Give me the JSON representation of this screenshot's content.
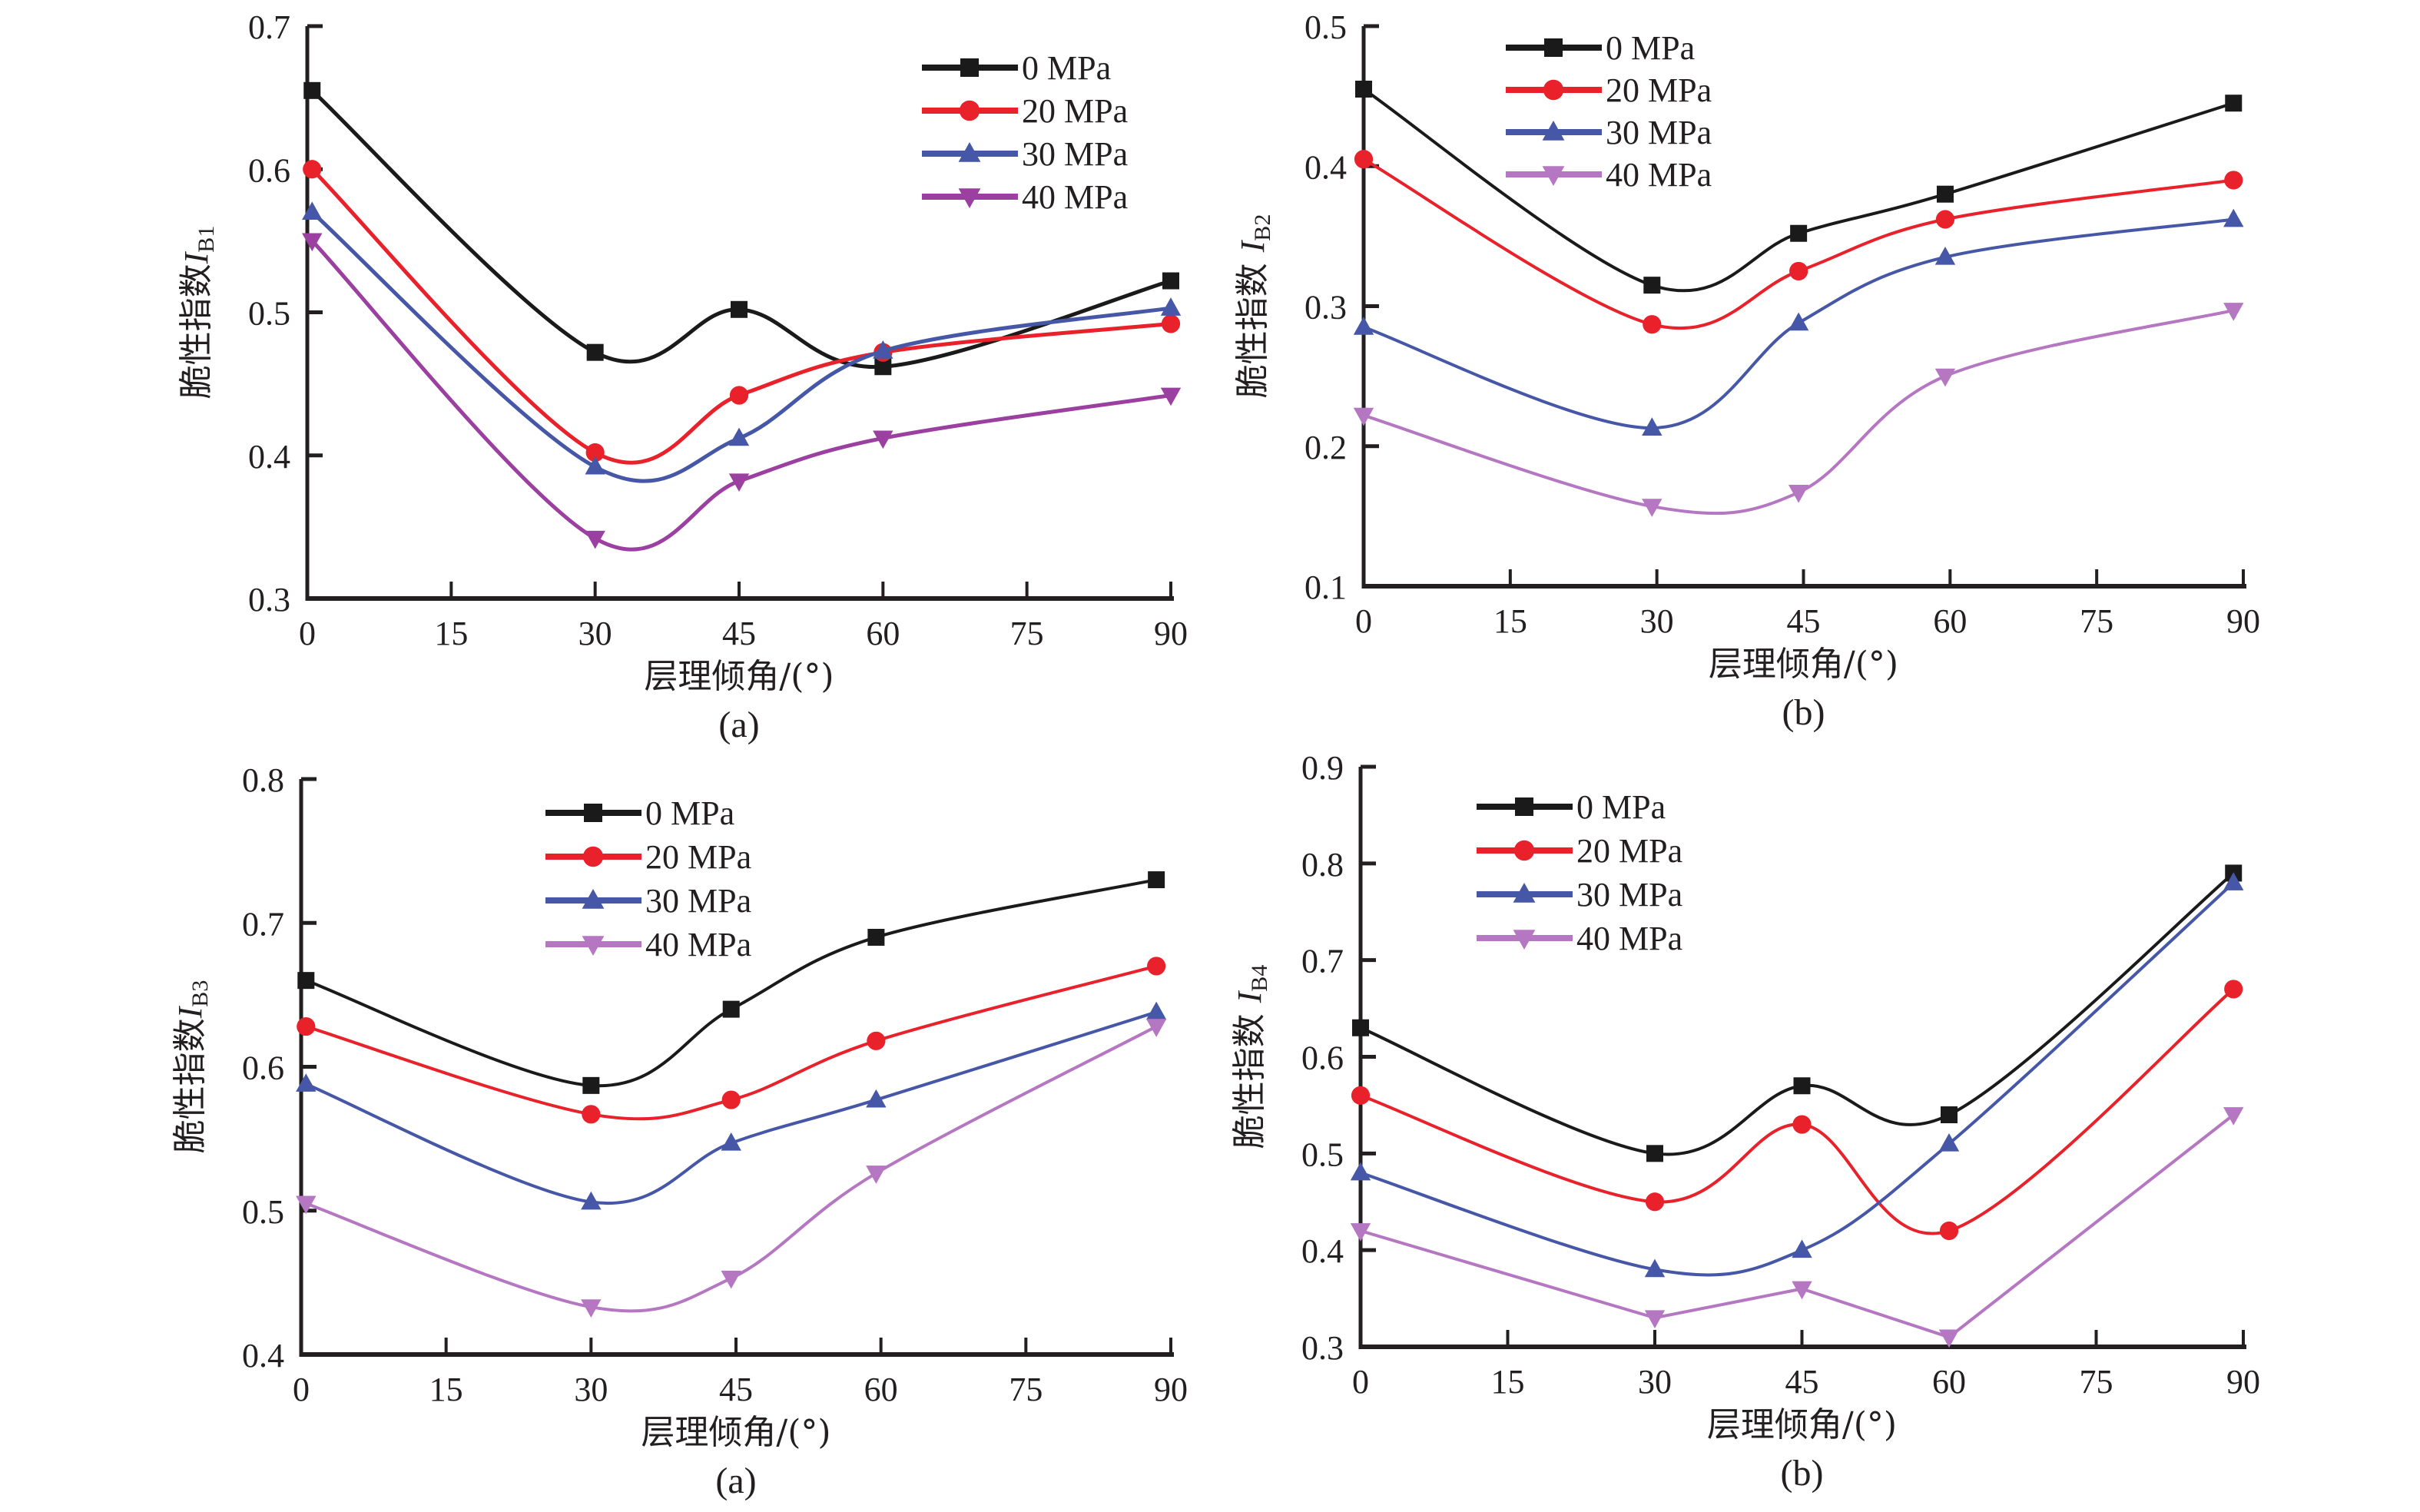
{
  "figure": {
    "series_styles": [
      {
        "name": "0 MPa",
        "color": "#1a1a1a",
        "marker": "square"
      },
      {
        "name": "20 MPa",
        "color": "#e8212b",
        "marker": "circle"
      },
      {
        "name": "30 MPa",
        "color": "#4557a6",
        "marker": "triangle-up"
      },
      {
        "name": "40 MPa",
        "color": "#9b3fa0",
        "marker": "triangle-down"
      }
    ]
  },
  "chart_data": [
    {
      "id": "a-top",
      "type": "line",
      "caption": "(a)",
      "xlabel": "层理倾角/(°)",
      "ylabel_prefix": "脆性指数",
      "ylabel_var": "I",
      "ylabel_sub": "B1",
      "xlim": [
        0,
        90
      ],
      "ylim": [
        0.3,
        0.7
      ],
      "xticks": [
        0,
        15,
        30,
        45,
        60,
        75,
        90
      ],
      "yticks": [
        0.3,
        0.4,
        0.5,
        0.6,
        0.7
      ],
      "ytick_labels": [
        "0.3",
        "0.4",
        "0.5",
        "0.6",
        "0.7"
      ],
      "legend_position": "top-right",
      "smooth": [
        true,
        true,
        true,
        true
      ],
      "series": [
        {
          "name": "0 MPa",
          "x": [
            0.5,
            30,
            45,
            60,
            90
          ],
          "values": [
            0.655,
            0.472,
            0.502,
            0.462,
            0.522
          ]
        },
        {
          "name": "20 MPa",
          "x": [
            0.5,
            30,
            45,
            60,
            90
          ],
          "values": [
            0.6,
            0.402,
            0.442,
            0.472,
            0.492
          ]
        },
        {
          "name": "30 MPa",
          "x": [
            0.5,
            30,
            45,
            60,
            90
          ],
          "values": [
            0.57,
            0.392,
            0.412,
            0.473,
            0.503
          ]
        },
        {
          "name": "40 MPa",
          "x": [
            0.5,
            30,
            45,
            60,
            90
          ],
          "values": [
            0.55,
            0.342,
            0.382,
            0.412,
            0.442
          ]
        }
      ]
    },
    {
      "id": "b-top",
      "type": "line",
      "caption": "(b)",
      "xlabel": "层理倾角/(°)",
      "ylabel_prefix": "脆性指数 ",
      "ylabel_var": "I",
      "ylabel_sub": "B2",
      "xlim": [
        0,
        90
      ],
      "ylim": [
        0.1,
        0.5
      ],
      "xticks": [
        0,
        15,
        30,
        45,
        60,
        75,
        90
      ],
      "yticks": [
        0.1,
        0.2,
        0.3,
        0.4,
        0.5
      ],
      "ytick_labels": [
        "0.1",
        "0.2",
        "0.3",
        "0.4",
        "0.5"
      ],
      "legend_position": "top-left",
      "smooth": [
        true,
        true,
        true,
        true
      ],
      "series": [
        {
          "name": "0 MPa",
          "x": [
            0,
            29.5,
            44.5,
            59.5,
            89
          ],
          "values": [
            0.455,
            0.315,
            0.352,
            0.38,
            0.445
          ]
        },
        {
          "name": "20 MPa",
          "x": [
            0,
            29.5,
            44.5,
            59.5,
            89
          ],
          "values": [
            0.405,
            0.287,
            0.325,
            0.362,
            0.39
          ]
        },
        {
          "name": "30 MPa",
          "x": [
            0,
            29.5,
            44.5,
            59.5,
            89
          ],
          "values": [
            0.285,
            0.213,
            0.288,
            0.335,
            0.362
          ]
        },
        {
          "name": "40 MPa",
          "x": [
            0,
            29.5,
            44.5,
            59.5,
            89
          ],
          "values": [
            0.222,
            0.157,
            0.167,
            0.25,
            0.297
          ]
        }
      ]
    },
    {
      "id": "a-bottom",
      "type": "line",
      "caption": "(a)",
      "xlabel": "层理倾角/(°)",
      "ylabel_prefix": "脆性指数",
      "ylabel_var": "I",
      "ylabel_sub": "B3",
      "xlim": [
        0,
        90
      ],
      "ylim": [
        0.4,
        0.8
      ],
      "xticks": [
        0,
        15,
        30,
        45,
        60,
        75,
        90
      ],
      "yticks": [
        0.4,
        0.5,
        0.6,
        0.7,
        0.8
      ],
      "ytick_labels": [
        "0.4",
        "0.5",
        "0.6",
        "0.7",
        "0.8"
      ],
      "legend_position": "top-center",
      "smooth": [
        true,
        true,
        true,
        true
      ],
      "series": [
        {
          "name": "0 MPa",
          "x": [
            0.5,
            30,
            44.5,
            59.5,
            88.5
          ],
          "values": [
            0.66,
            0.587,
            0.64,
            0.69,
            0.73
          ]
        },
        {
          "name": "20 MPa",
          "x": [
            0.5,
            30,
            44.5,
            59.5,
            88.5
          ],
          "values": [
            0.628,
            0.567,
            0.577,
            0.618,
            0.67
          ]
        },
        {
          "name": "30 MPa",
          "x": [
            0.5,
            30,
            44.5,
            59.5,
            88.5
          ],
          "values": [
            0.588,
            0.506,
            0.547,
            0.577,
            0.638
          ]
        },
        {
          "name": "40 MPa",
          "x": [
            0.5,
            30,
            44.5,
            59.5,
            88.5
          ],
          "values": [
            0.505,
            0.433,
            0.453,
            0.526,
            0.628
          ]
        }
      ]
    },
    {
      "id": "b-bottom",
      "type": "line",
      "caption": "(b)",
      "xlabel": "层理倾角/(°)",
      "ylabel_prefix": "脆性指数 ",
      "ylabel_var": "I",
      "ylabel_sub": "B4",
      "xlim": [
        0,
        90
      ],
      "ylim": [
        0.3,
        0.9
      ],
      "xticks": [
        0,
        15,
        30,
        45,
        60,
        75,
        90
      ],
      "yticks": [
        0.3,
        0.4,
        0.5,
        0.6,
        0.7,
        0.8,
        0.9
      ],
      "ytick_labels": [
        "0.3",
        "0.4",
        "0.5",
        "0.6",
        "0.7",
        "0.8",
        "0.9"
      ],
      "legend_position": "top-left",
      "smooth": [
        true,
        true,
        true,
        false
      ],
      "series": [
        {
          "name": "0 MPa",
          "x": [
            0,
            30,
            45,
            60,
            89
          ],
          "values": [
            0.63,
            0.5,
            0.57,
            0.54,
            0.79
          ]
        },
        {
          "name": "20 MPa",
          "x": [
            0,
            30,
            45,
            60,
            89
          ],
          "values": [
            0.56,
            0.45,
            0.53,
            0.42,
            0.67
          ]
        },
        {
          "name": "30 MPa",
          "x": [
            0,
            30,
            45,
            60,
            89
          ],
          "values": [
            0.48,
            0.38,
            0.4,
            0.51,
            0.78
          ]
        },
        {
          "name": "40 MPa",
          "x": [
            0,
            30,
            45,
            60,
            89
          ],
          "values": [
            0.42,
            0.33,
            0.36,
            0.31,
            0.54
          ]
        }
      ]
    }
  ]
}
